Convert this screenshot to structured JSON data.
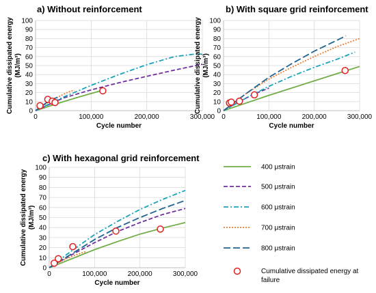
{
  "legend": {
    "items": [
      {
        "label": "400 μstrain",
        "color": "#70ad47",
        "dash": "solid"
      },
      {
        "label": "500 μstrain",
        "color": "#7030a0",
        "dash": "dash"
      },
      {
        "label": "600 μstrain",
        "color": "#17a2b8",
        "dash": "dashdot"
      },
      {
        "label": "700 μstrain",
        "color": "#ed7d31",
        "dash": "dot"
      },
      {
        "label": "800 μstrain",
        "color": "#1f6391",
        "dash": "longdash"
      }
    ],
    "failure_label_line1": "Cumulative dissipated energy at",
    "failure_label_line2": "failure",
    "failure_color": "#e02020"
  },
  "chart_data": [
    {
      "type": "line",
      "title": "a) Without reinforcement",
      "xlabel": "Cycle number",
      "ylabel_line1": "Cumulative dissipated energy",
      "ylabel_line2": "(MJ/m³)",
      "xlim": [
        0,
        300000
      ],
      "ylim": [
        0,
        100
      ],
      "x_ticks": [
        "0",
        "100,000",
        "200,000",
        "300,000"
      ],
      "y_ticks": [
        "0",
        "10",
        "20",
        "30",
        "40",
        "50",
        "60",
        "70",
        "80",
        "90",
        "100"
      ],
      "grid": true,
      "series": [
        {
          "name": "400 μstrain",
          "x": [
            0,
            40000,
            80000,
            120000
          ],
          "y": [
            0,
            8,
            15.5,
            22.5
          ]
        },
        {
          "name": "500 μstrain",
          "x": [
            0,
            50000,
            100000,
            150000,
            200000,
            250000,
            300000
          ],
          "y": [
            0,
            14,
            23,
            31,
            38,
            45,
            51.5
          ]
        },
        {
          "name": "600 μstrain",
          "x": [
            0,
            50000,
            100000,
            150000,
            200000,
            250000,
            290000,
            300000
          ],
          "y": [
            0,
            15,
            28,
            40,
            51,
            60,
            63,
            62.5
          ]
        },
        {
          "name": "700 μstrain",
          "x": [
            0,
            15000,
            30000,
            50000,
            60000,
            70000
          ],
          "y": [
            0,
            6,
            12,
            18,
            21,
            22.5
          ]
        },
        {
          "name": "800 μstrain",
          "x": [
            0,
            10000,
            20000,
            30000,
            40000
          ],
          "y": [
            0,
            4.5,
            9,
            12.5,
            15
          ]
        }
      ],
      "failure_points": {
        "x": [
          8000,
          22000,
          30000,
          35000,
          121000
        ],
        "y": [
          5.5,
          12.5,
          10.5,
          9.0,
          22.0
        ]
      }
    },
    {
      "type": "line",
      "title": "b) With square grid reinforcement",
      "xlabel": "Cycle number",
      "ylabel_line1": "Cumulative dissipated energy",
      "ylabel_line2": "(MJ/m³)",
      "xlim": [
        0,
        300000
      ],
      "ylim": [
        0,
        100
      ],
      "x_ticks": [
        "0",
        "100,000",
        "200,000",
        "300,000"
      ],
      "y_ticks": [
        "0",
        "10",
        "20",
        "30",
        "40",
        "50",
        "60",
        "70",
        "80",
        "90",
        "100"
      ],
      "grid": true,
      "series": [
        {
          "name": "400 μstrain",
          "x": [
            0,
            50000,
            100000,
            150000,
            200000,
            250000,
            300000
          ],
          "y": [
            0,
            8.5,
            17,
            25,
            33,
            41,
            49
          ]
        },
        {
          "name": "500 μstrain",
          "x": [
            0,
            20000,
            40000,
            60000,
            80000,
            100000
          ],
          "y": [
            0,
            6,
            11.5,
            16.5,
            21,
            25
          ]
        },
        {
          "name": "600 μstrain",
          "x": [
            0,
            50000,
            100000,
            150000,
            200000,
            250000,
            290000
          ],
          "y": [
            0,
            14,
            27,
            38,
            48,
            57,
            65
          ]
        },
        {
          "name": "700 μstrain",
          "x": [
            0,
            50000,
            100000,
            150000,
            200000,
            250000,
            300000
          ],
          "y": [
            0,
            19,
            35,
            48,
            60,
            71,
            80
          ]
        },
        {
          "name": "800 μstrain",
          "x": [
            0,
            50000,
            100000,
            150000,
            200000,
            250000,
            270000
          ],
          "y": [
            0,
            19,
            37,
            52,
            66,
            78,
            83
          ]
        }
      ],
      "failure_points": {
        "x": [
          13000,
          17000,
          35000,
          68000,
          268000
        ],
        "y": [
          8.5,
          9.5,
          10.5,
          17.5,
          44.5
        ]
      }
    },
    {
      "type": "line",
      "title": "c) With hexagonal grid reinforcement",
      "xlabel": "Cycle number",
      "ylabel_line1": "Cumulative dissipated energy",
      "ylabel_line2": "(MJ/m³)",
      "xlim": [
        0,
        300000
      ],
      "ylim": [
        0,
        100
      ],
      "x_ticks": [
        "0",
        "100,000",
        "200,000",
        "300,000"
      ],
      "y_ticks": [
        "0",
        "10",
        "20",
        "30",
        "40",
        "50",
        "60",
        "70",
        "80",
        "90",
        "100"
      ],
      "grid": true,
      "series": [
        {
          "name": "400 μstrain",
          "x": [
            0,
            50000,
            100000,
            150000,
            200000,
            250000,
            300000
          ],
          "y": [
            0,
            9,
            18,
            26,
            33.5,
            39.5,
            45
          ]
        },
        {
          "name": "500 μstrain",
          "x": [
            0,
            50000,
            100000,
            150000,
            200000,
            250000,
            300000
          ],
          "y": [
            0,
            13,
            25,
            36,
            45,
            53,
            59
          ]
        },
        {
          "name": "600 μstrain",
          "x": [
            0,
            50000,
            100000,
            150000,
            200000,
            250000,
            300000
          ],
          "y": [
            0,
            17,
            33,
            46,
            58,
            68,
            77
          ]
        },
        {
          "name": "700 μstrain",
          "x": [
            0,
            20000,
            40000,
            60000,
            80000
          ],
          "y": [
            0,
            5,
            9.5,
            13,
            16
          ]
        },
        {
          "name": "800 μstrain",
          "x": [
            0,
            50000,
            100000,
            150000,
            200000,
            250000,
            300000
          ],
          "y": [
            0,
            14,
            28,
            40,
            50,
            59,
            67
          ]
        }
      ],
      "failure_points": {
        "x": [
          11000,
          20000,
          52000,
          147000,
          245000
        ],
        "y": [
          4.5,
          9.0,
          21.0,
          36.5,
          38.5
        ]
      }
    }
  ]
}
